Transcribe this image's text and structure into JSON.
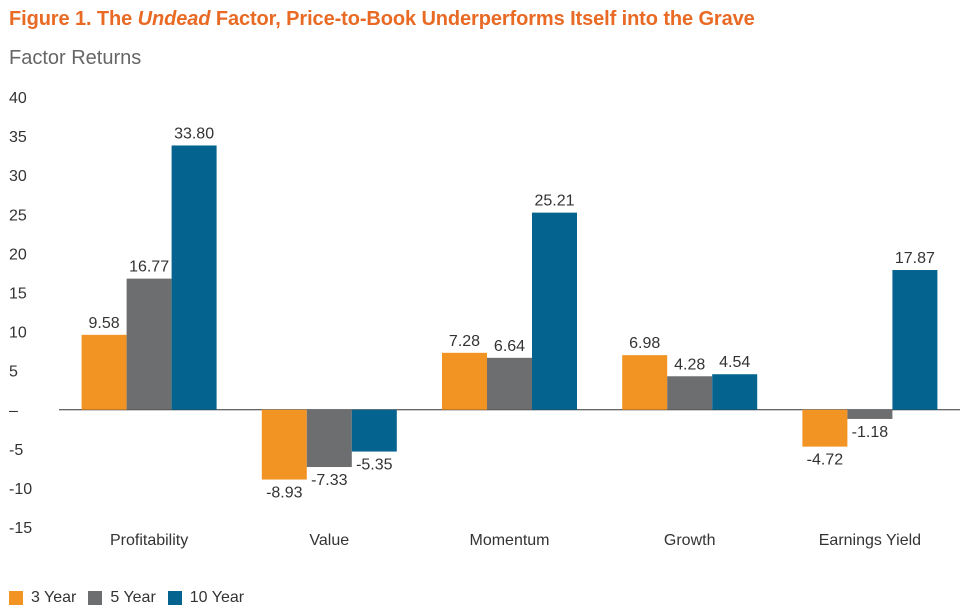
{
  "title": {
    "prefix": "Figure 1. The ",
    "emphasis": "Undead",
    "suffix": " Factor, Price-to-Book Underperforms Itself into the Grave"
  },
  "subtitle": "Factor Returns",
  "colors": {
    "title": "#e86a24",
    "series": [
      "#f29423",
      "#6d6e70",
      "#04648f"
    ]
  },
  "chart_data": {
    "type": "bar",
    "title": "Factor Returns",
    "xlabel": "",
    "ylabel": "",
    "ylim": [
      -15,
      40
    ],
    "yticks": [
      40,
      35,
      30,
      25,
      20,
      15,
      10,
      5,
      0,
      -5,
      -10,
      -15
    ],
    "ytick_labels": [
      "40",
      "35",
      "30",
      "25",
      "20",
      "15",
      "10",
      "5",
      "–",
      "-5",
      "-10",
      "-15"
    ],
    "grid": false,
    "legend_position": "bottom-left",
    "categories": [
      "Profitability",
      "Value",
      "Momentum",
      "Growth",
      "Earnings Yield"
    ],
    "series": [
      {
        "name": "3 Year",
        "values": [
          9.58,
          -8.93,
          7.28,
          6.98,
          -4.72
        ],
        "labels": [
          "9.58",
          "-8.93",
          "7.28",
          "6.98",
          "-4.72"
        ]
      },
      {
        "name": "5 Year",
        "values": [
          16.77,
          -7.33,
          6.64,
          4.28,
          -1.18
        ],
        "labels": [
          "16.77",
          "-7.33",
          "6.64",
          "4.28",
          "-1.18"
        ]
      },
      {
        "name": "10 Year",
        "values": [
          33.8,
          -5.35,
          25.21,
          4.54,
          17.87
        ],
        "labels": [
          "33.80",
          "-5.35",
          "25.21",
          "4.54",
          "17.87"
        ]
      }
    ]
  }
}
